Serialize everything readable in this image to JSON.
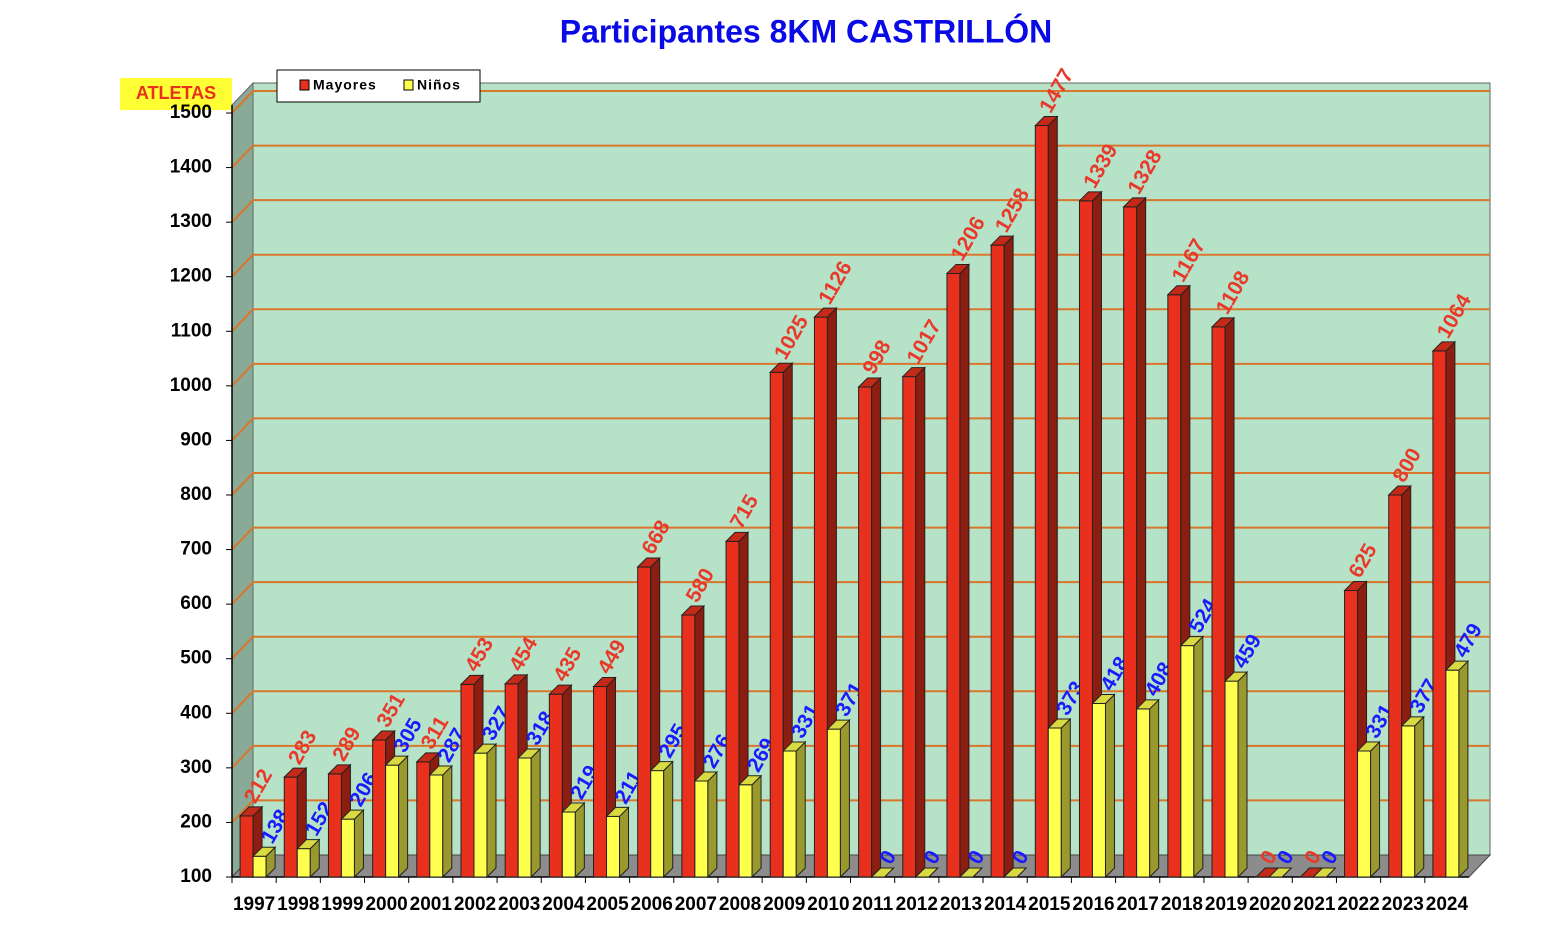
{
  "chart_data": {
    "type": "bar3d",
    "title": "Participantes 8KM CASTRILLÓN",
    "y_label": "ATLETAS",
    "categories": [
      "1997",
      "1998",
      "1999",
      "2000",
      "2001",
      "2002",
      "2003",
      "2004",
      "2005",
      "2006",
      "2007",
      "2008",
      "2009",
      "2010",
      "2011",
      "2012",
      "2013",
      "2014",
      "2015",
      "2016",
      "2017",
      "2018",
      "2019",
      "2020",
      "2021",
      "2022",
      "2023",
      "2024"
    ],
    "series": [
      {
        "name": "Mayores",
        "color": "#e8301c",
        "label_color": "#e8392a",
        "values": [
          212,
          283,
          289,
          351,
          311,
          453,
          454,
          435,
          449,
          668,
          580,
          715,
          1025,
          1126,
          998,
          1017,
          1206,
          1258,
          1477,
          1339,
          1328,
          1167,
          1108,
          0,
          0,
          625,
          800,
          1064
        ]
      },
      {
        "name": "Niños",
        "color": "#ffff4d",
        "label_color": "#1a1aff",
        "values": [
          138,
          152,
          206,
          305,
          287,
          327,
          318,
          219,
          211,
          295,
          276,
          269,
          331,
          371,
          0,
          0,
          0,
          0,
          373,
          418,
          408,
          524,
          459,
          0,
          0,
          331,
          377,
          479
        ]
      }
    ],
    "ylim": [
      100,
      1500
    ],
    "yticks": [
      100,
      200,
      300,
      400,
      500,
      600,
      700,
      800,
      900,
      1000,
      1100,
      1200,
      1300,
      1400,
      1500
    ],
    "grid": true,
    "grid_color": "#d9762b",
    "wall_color": "#b6e3c8",
    "legend": "top-left"
  }
}
